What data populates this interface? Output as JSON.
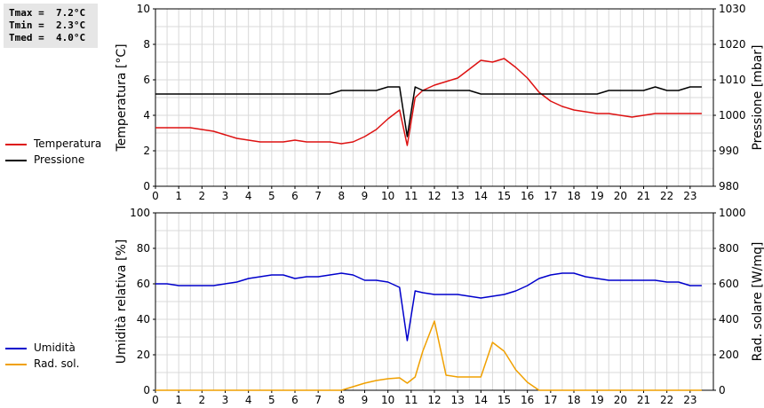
{
  "stats": {
    "tmax": "Tmax =  7.2°C",
    "tmin": "Tmin =  2.3°C",
    "tmed": "Tmed =  4.0°C"
  },
  "legend_top": [
    {
      "label": "Temperatura",
      "color": "#dd1111"
    },
    {
      "label": "Pressione",
      "color": "#000000"
    }
  ],
  "legend_bottom": [
    {
      "label": "Umidità",
      "color": "#0000cc"
    },
    {
      "label": "Rad. sol.",
      "color": "#f0a000"
    }
  ],
  "chart_data": [
    {
      "type": "line",
      "ylabel": "Temperatura [°C]",
      "y2label": "Pressione [mbar]",
      "xlim": [
        0,
        24
      ],
      "xticks": [
        "0",
        "1",
        "2",
        "3",
        "4",
        "5",
        "6",
        "7",
        "8",
        "9",
        "10",
        "11",
        "12",
        "13",
        "14",
        "15",
        "16",
        "17",
        "18",
        "19",
        "20",
        "21",
        "22",
        "23"
      ],
      "ylim": [
        0,
        10
      ],
      "yticks": [
        "0",
        "2",
        "4",
        "6",
        "8",
        "10"
      ],
      "y2lim": [
        980,
        1030
      ],
      "y2ticks": [
        "980",
        "990",
        "1000",
        "1010",
        "1020",
        "1030"
      ],
      "grid": true,
      "series": [
        {
          "name": "Temperatura",
          "axis": "left",
          "color": "#dd1111",
          "x": [
            0,
            0.5,
            1,
            1.5,
            2,
            2.5,
            3,
            3.5,
            4,
            4.5,
            5,
            5.5,
            6,
            6.5,
            7,
            7.5,
            8,
            8.5,
            9,
            9.5,
            10,
            10.5,
            10.83,
            11.17,
            11.5,
            12,
            12.5,
            13,
            13.5,
            14,
            14.5,
            15,
            15.5,
            16,
            16.5,
            17,
            17.5,
            18,
            18.5,
            19,
            19.5,
            20,
            20.5,
            21,
            21.5,
            22,
            22.5,
            23,
            23.5
          ],
          "y": [
            3.3,
            3.3,
            3.3,
            3.3,
            3.2,
            3.1,
            2.9,
            2.7,
            2.6,
            2.5,
            2.5,
            2.5,
            2.6,
            2.5,
            2.5,
            2.5,
            2.4,
            2.5,
            2.8,
            3.2,
            3.8,
            4.3,
            2.3,
            5.0,
            5.4,
            5.7,
            5.9,
            6.1,
            6.6,
            7.1,
            7.0,
            7.2,
            6.7,
            6.1,
            5.3,
            4.8,
            4.5,
            4.3,
            4.2,
            4.1,
            4.1,
            4.0,
            3.9,
            4.0,
            4.1,
            4.1,
            4.1,
            4.1,
            4.1
          ]
        },
        {
          "name": "Pressione",
          "axis": "right",
          "color": "#000000",
          "x": [
            0,
            0.5,
            1,
            1.5,
            2,
            2.5,
            3,
            3.5,
            4,
            4.5,
            5,
            5.5,
            6,
            6.5,
            7,
            7.5,
            8,
            8.5,
            9,
            9.5,
            10,
            10.5,
            10.83,
            11.17,
            11.5,
            12,
            12.5,
            13,
            13.5,
            14,
            14.5,
            15,
            15.5,
            16,
            16.5,
            17,
            17.5,
            18,
            18.5,
            19,
            19.5,
            20,
            20.5,
            21,
            21.5,
            22,
            22.5,
            23,
            23.5
          ],
          "y": [
            1006,
            1006,
            1006,
            1006,
            1006,
            1006,
            1006,
            1006,
            1006,
            1006,
            1006,
            1006,
            1006,
            1006,
            1006,
            1006,
            1007,
            1007,
            1007,
            1007,
            1008,
            1008,
            994,
            1008,
            1007,
            1007,
            1007,
            1007,
            1007,
            1006,
            1006,
            1006,
            1006,
            1006,
            1006,
            1006,
            1006,
            1006,
            1006,
            1006,
            1007,
            1007,
            1007,
            1007,
            1008,
            1007,
            1007,
            1008,
            1008
          ]
        }
      ]
    },
    {
      "type": "line",
      "ylabel": "Umidità relativa [%]",
      "y2label": "Rad. solare [W/mq]",
      "xlim": [
        0,
        24
      ],
      "xticks": [
        "0",
        "1",
        "2",
        "3",
        "4",
        "5",
        "6",
        "7",
        "8",
        "9",
        "10",
        "11",
        "12",
        "13",
        "14",
        "15",
        "16",
        "17",
        "18",
        "19",
        "20",
        "21",
        "22",
        "23"
      ],
      "ylim": [
        0,
        100
      ],
      "yticks": [
        "0",
        "20",
        "40",
        "60",
        "80",
        "100"
      ],
      "y2lim": [
        0,
        1000
      ],
      "y2ticks": [
        "0",
        "200",
        "400",
        "600",
        "800",
        "1000"
      ],
      "grid": true,
      "series": [
        {
          "name": "Umidità",
          "axis": "left",
          "color": "#0000cc",
          "x": [
            0,
            0.5,
            1,
            1.5,
            2,
            2.5,
            3,
            3.5,
            4,
            4.5,
            5,
            5.5,
            6,
            6.5,
            7,
            7.5,
            8,
            8.5,
            9,
            9.5,
            10,
            10.5,
            10.83,
            11.17,
            11.5,
            12,
            12.5,
            13,
            13.5,
            14,
            14.5,
            15,
            15.5,
            16,
            16.5,
            17,
            17.5,
            18,
            18.5,
            19,
            19.5,
            20,
            20.5,
            21,
            21.5,
            22,
            22.5,
            23,
            23.5
          ],
          "y": [
            60,
            60,
            59,
            59,
            59,
            59,
            60,
            61,
            63,
            64,
            65,
            65,
            63,
            64,
            64,
            65,
            66,
            65,
            62,
            62,
            61,
            58,
            28,
            56,
            55,
            54,
            54,
            54,
            53,
            52,
            53,
            54,
            56,
            59,
            63,
            65,
            66,
            66,
            64,
            63,
            62,
            62,
            62,
            62,
            62,
            61,
            61,
            59,
            59
          ]
        },
        {
          "name": "Rad. sol.",
          "axis": "right",
          "color": "#f0a000",
          "x": [
            0,
            0.5,
            1,
            1.5,
            2,
            2.5,
            3,
            3.5,
            4,
            4.5,
            5,
            5.5,
            6,
            6.5,
            7,
            7.5,
            8,
            8.5,
            9,
            9.5,
            10,
            10.5,
            10.83,
            11.17,
            11.5,
            12,
            12.5,
            13,
            13.5,
            14,
            14.5,
            15,
            15.5,
            16,
            16.5,
            17,
            17.5,
            18,
            18.5,
            19,
            19.5,
            20,
            20.5,
            21,
            21.5,
            22,
            22.5,
            23,
            23.5
          ],
          "y": [
            0,
            0,
            0,
            0,
            0,
            0,
            0,
            0,
            0,
            0,
            0,
            0,
            0,
            0,
            0,
            0,
            0,
            20,
            40,
            55,
            65,
            70,
            40,
            75,
            220,
            390,
            85,
            75,
            75,
            75,
            270,
            220,
            115,
            45,
            0,
            0,
            0,
            0,
            0,
            0,
            0,
            0,
            0,
            0,
            0,
            0,
            0,
            0,
            0
          ]
        }
      ]
    }
  ]
}
